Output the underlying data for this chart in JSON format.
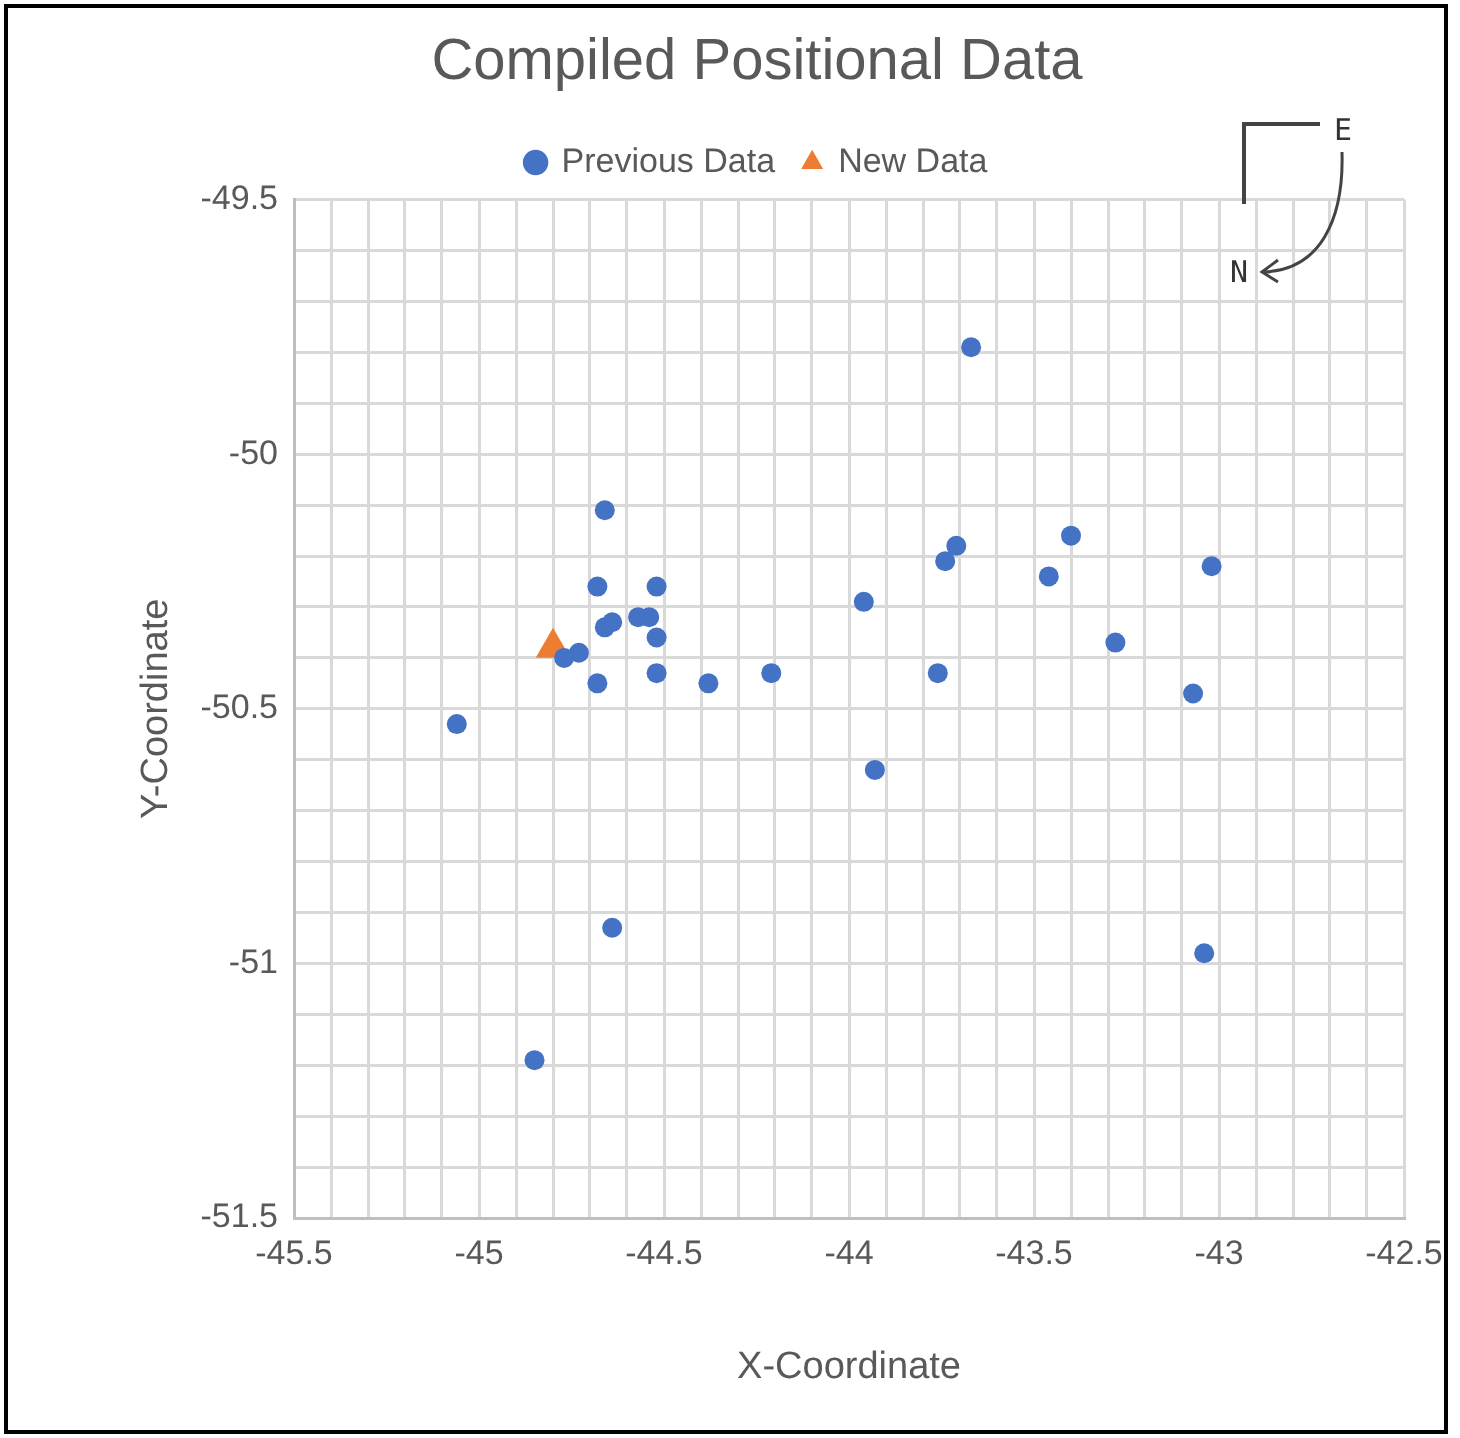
{
  "chart_data": {
    "type": "scatter",
    "title": "Compiled Positional Data",
    "xlabel": "X-Coordinate",
    "ylabel": "Y-Coordinate",
    "annotations": [
      "E",
      "N"
    ],
    "series": [
      {
        "name": "Previous Data",
        "color": "#4472c4",
        "marker": "circle",
        "x": [
          -44.66,
          -44.68,
          -44.52,
          -44.66,
          -44.64,
          -44.57,
          -44.54,
          -44.52,
          -44.73,
          -44.77,
          -44.68,
          -44.52,
          -44.38,
          -44.21,
          -45.06,
          -43.67,
          -43.71,
          -43.74,
          -43.46,
          -43.4,
          -43.02,
          -43.96,
          -43.28,
          -43.76,
          -43.07,
          -43.93,
          -44.64,
          -43.04,
          -44.85
        ],
        "values": [
          -50.11,
          -50.26,
          -50.26,
          -50.34,
          -50.33,
          -50.32,
          -50.32,
          -50.36,
          -50.39,
          -50.4,
          -50.45,
          -50.43,
          -50.45,
          -50.43,
          -50.53,
          -49.79,
          -50.18,
          -50.21,
          -50.24,
          -50.16,
          -50.22,
          -50.29,
          -50.37,
          -50.43,
          -50.47,
          -50.62,
          -50.93,
          -50.98,
          -51.19
        ]
      },
      {
        "name": "New Data",
        "color": "#ed7d31",
        "marker": "triangle",
        "x": [
          -44.8
        ],
        "values": [
          -50.38
        ]
      }
    ],
    "xlim": [
      -45.5,
      -42.5
    ],
    "xticks": [
      -45.5,
      {
        "value": -45.4,
        "label": null
      },
      {
        "value": -45.3,
        "label": null
      },
      {
        "value": -45.2,
        "label": null
      },
      {
        "value": -45.1,
        "label": null
      },
      -45,
      {
        "value": -44.9,
        "label": null
      },
      {
        "value": -44.8,
        "label": null
      },
      {
        "value": -44.7,
        "label": null
      },
      {
        "value": -44.6,
        "label": null
      },
      -44.5,
      {
        "value": -44.4,
        "label": null
      },
      {
        "value": -44.3,
        "label": null
      },
      {
        "value": -44.2,
        "label": null
      },
      {
        "value": -44.1,
        "label": null
      },
      -44,
      {
        "value": -43.9,
        "label": null
      },
      {
        "value": -43.8,
        "label": null
      },
      {
        "value": -43.7,
        "label": null
      },
      {
        "value": -43.6,
        "label": null
      },
      -43.5,
      {
        "value": -43.4,
        "label": null
      },
      {
        "value": -43.3,
        "label": null
      },
      {
        "value": -43.2,
        "label": null
      },
      {
        "value": -43.1,
        "label": null
      },
      -43,
      {
        "value": -42.9,
        "label": null
      },
      {
        "value": -42.8,
        "label": null
      },
      {
        "value": -42.7,
        "label": null
      },
      {
        "value": -42.6,
        "label": null
      },
      -42.5
    ],
    "ylim": [
      -51.5,
      -49.5
    ],
    "yticks": [
      -51.5,
      {
        "value": -51.4,
        "label": null
      },
      {
        "value": -51.3,
        "label": null
      },
      {
        "value": -51.2,
        "label": null
      },
      {
        "value": -51.1,
        "label": null
      },
      -51,
      {
        "value": -50.9,
        "label": null
      },
      {
        "value": -50.8,
        "label": null
      },
      {
        "value": -50.7,
        "label": null
      },
      {
        "value": -50.6,
        "label": null
      },
      -50.5,
      {
        "value": -50.4,
        "label": null
      },
      {
        "value": -50.3,
        "label": null
      },
      {
        "value": -50.2,
        "label": null
      },
      {
        "value": -50.1,
        "label": null
      },
      -50,
      {
        "value": -49.9,
        "label": null
      },
      {
        "value": -49.8,
        "label": null
      },
      {
        "value": -49.7,
        "label": null
      },
      {
        "value": -49.6,
        "label": null
      },
      -49.5
    ],
    "grid": true,
    "legend": "top"
  }
}
